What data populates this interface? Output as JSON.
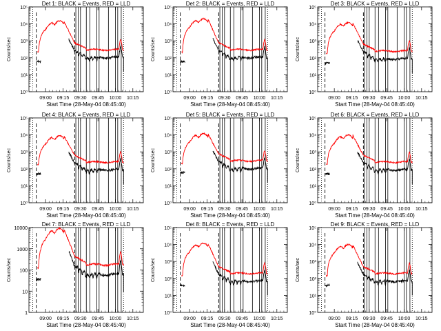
{
  "chart_data": {
    "type": "line",
    "xlabel": "Start Time (28-May-04 08:45:40)",
    "ylabel": "Counts/sec",
    "x_tick_labels": [
      "09:00",
      "09:15",
      "09:30",
      "09:45",
      "10:00",
      "10:15"
    ],
    "x_tick_minutes": [
      0,
      15,
      30,
      45,
      60,
      75
    ],
    "xlim_minutes": [
      -14.3,
      84
    ],
    "y_scale": "log",
    "colors": {
      "events": "#000000",
      "lld": "#ff0000"
    },
    "panels": [
      {
        "title": "Det 1: BLACK = Events, RED = LLD",
        "ylim": [
          1,
          100000
        ],
        "y_tick_labels": [
          "10⁰",
          "10¹",
          "10²",
          "10³",
          "10⁴",
          "10⁵"
        ],
        "peak": 15000,
        "base": 300,
        "offset": 0
      },
      {
        "title": "Det 2: BLACK = Events, RED = LLD",
        "ylim": [
          1,
          100000
        ],
        "y_tick_labels": [
          "10⁰",
          "10¹",
          "10²",
          "10³",
          "10⁴",
          "10⁵"
        ],
        "peak": 20000,
        "base": 300,
        "offset": 1
      },
      {
        "title": "Det 3: BLACK = Events, RED = LLD",
        "ylim": [
          1,
          100000
        ],
        "y_tick_labels": [
          "10⁰",
          "10¹",
          "10²",
          "10³",
          "10⁴",
          "10⁵"
        ],
        "peak": 12000,
        "base": 250,
        "offset": 2
      },
      {
        "title": "Det 4: BLACK = Events, RED = LLD",
        "ylim": [
          1,
          100000
        ],
        "y_tick_labels": [
          "10⁰",
          "10¹",
          "10²",
          "10³",
          "10⁴",
          "10⁵"
        ],
        "peak": 9000,
        "base": 250,
        "offset": 3
      },
      {
        "title": "Det 5: BLACK = Events, RED = LLD",
        "ylim": [
          1,
          100000
        ],
        "y_tick_labels": [
          "10⁰",
          "10¹",
          "10²",
          "10³",
          "10⁴",
          "10⁵"
        ],
        "peak": 12000,
        "base": 300,
        "offset": 4
      },
      {
        "title": "Det 6: BLACK = Events, RED = LLD",
        "ylim": [
          1,
          100000
        ],
        "y_tick_labels": [
          "10⁰",
          "10¹",
          "10²",
          "10³",
          "10⁴",
          "10⁵"
        ],
        "peak": 10000,
        "base": 250,
        "offset": 5
      },
      {
        "title": "Det 7: BLACK = Events, RED = LLD",
        "ylim": [
          1,
          10000
        ],
        "y_tick_labels": [
          "1",
          "10",
          "100",
          "1000",
          "10000"
        ],
        "peak": 9000,
        "base": 180,
        "offset": 6
      },
      {
        "title": "Det 8: BLACK = Events, RED = LLD",
        "ylim": [
          1,
          100000
        ],
        "y_tick_labels": [
          "10⁰",
          "10¹",
          "10²",
          "10³",
          "10⁴",
          "10⁵"
        ],
        "peak": 12000,
        "base": 200,
        "offset": 7
      },
      {
        "title": "Det 9: BLACK = Events, RED = LLD",
        "ylim": [
          1,
          100000
        ],
        "y_tick_labels": [
          "10⁰",
          "10¹",
          "10²",
          "10³",
          "10⁴",
          "10⁵"
        ],
        "peak": 10000,
        "base": 200,
        "offset": 8
      }
    ],
    "events_ratio": 0.35,
    "solid_vlines_minutes": [
      26,
      28,
      30,
      35,
      38,
      44,
      46,
      54,
      60,
      62,
      65
    ],
    "dashed_vlines_minutes": [
      -8,
      25
    ],
    "dotted_vlines_minutes": [
      -11,
      67
    ],
    "grid": false,
    "legend": "none"
  }
}
